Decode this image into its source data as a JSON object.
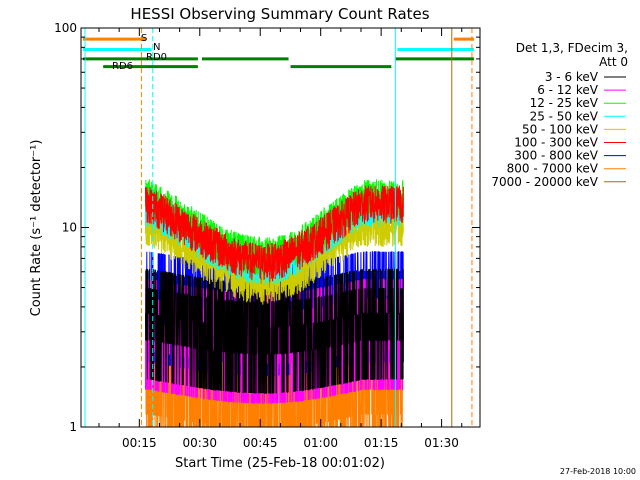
{
  "chart_data": {
    "type": "line",
    "title": "HESSI Observing Summary Count Rates",
    "xlabel": "Start Time (25-Feb-18 00:01:02)",
    "ylabel": "Count Rate (s⁻¹ detector⁻¹)",
    "yscale": "log",
    "ylim": [
      1,
      100
    ],
    "xlim_minutes_from_start": [
      -0.5,
      98.5
    ],
    "x_ticks": [
      {
        "label": "00:15",
        "min": 13.97
      },
      {
        "label": "00:30",
        "min": 28.97
      },
      {
        "label": "00:45",
        "min": 43.97
      },
      {
        "label": "01:00",
        "min": 58.97
      },
      {
        "label": "01:15",
        "min": 73.97
      },
      {
        "label": "01:30",
        "min": 88.97
      }
    ],
    "y_ticks": [
      {
        "label": "1",
        "value": 1
      },
      {
        "label": "10",
        "value": 10
      },
      {
        "label": "100",
        "value": 100
      }
    ],
    "legend_header": [
      "Det 1,3, FDecim 3,",
      "Att 0"
    ],
    "legend_position": "right",
    "series": [
      {
        "name": "3 - 6 keV",
        "color": "#000000",
        "base": 4.5
      },
      {
        "name": "6 - 12 keV",
        "color": "#ff00ff",
        "base": 4.0
      },
      {
        "name": "12 - 25 keV",
        "color": "#00ff00",
        "base": 14.0
      },
      {
        "name": "25 - 50 keV",
        "color": "#00ffff",
        "base": 12.5
      },
      {
        "name": "50 - 100 keV",
        "color": "#cccc00",
        "base": 10.0
      },
      {
        "name": "100 - 300 keV",
        "color": "#ff0000",
        "base": 13.0
      },
      {
        "name": "300 - 800 keV",
        "color": "#0000ff",
        "base": 5.5
      },
      {
        "name": "800 - 7000 keV",
        "color": "#ff8000",
        "base": 3.0
      },
      {
        "name": "7000 - 20000 keV",
        "color": "#a07000",
        "base": 1.0
      }
    ],
    "data_window_minutes": [
      15.5,
      79.5
    ],
    "shape": {
      "peak1_min": 16.5,
      "trough_min": 45.0,
      "peak2_min": 69.5
    },
    "flags": [
      {
        "label": "S",
        "color": "#ff8000",
        "value": 88,
        "segments": [
          [
            0,
            15.5
          ],
          [
            92,
            97
          ]
        ]
      },
      {
        "label": "N",
        "color": "#00ffff",
        "value": 78,
        "segments": [
          [
            0,
            17
          ],
          [
            78,
            97
          ]
        ]
      },
      {
        "label": "RD0",
        "color": "#008000",
        "value": 70,
        "segments": [
          [
            0,
            28.5
          ],
          [
            29.5,
            51
          ],
          [
            77.5,
            97
          ]
        ]
      },
      {
        "label": "RD6",
        "color": "#008000",
        "value": 64,
        "segments": [
          [
            5,
            28.5
          ],
          [
            51.5,
            76.5
          ]
        ]
      }
    ],
    "vlines": [
      {
        "min": 0.5,
        "color": "#00ffff",
        "style": "solid"
      },
      {
        "min": 14.5,
        "color": "#ff8000",
        "style": "dashed"
      },
      {
        "min": 17.3,
        "color": "#00ffff",
        "style": "dashed"
      },
      {
        "min": 77.5,
        "color": "#00ffff",
        "style": "solid"
      },
      {
        "min": 91.5,
        "color": "#a07000",
        "style": "solid"
      },
      {
        "min": 96.5,
        "color": "#ff8000",
        "style": "dashed"
      }
    ]
  },
  "footer": {
    "date": "27-Feb-2018 10:00"
  }
}
